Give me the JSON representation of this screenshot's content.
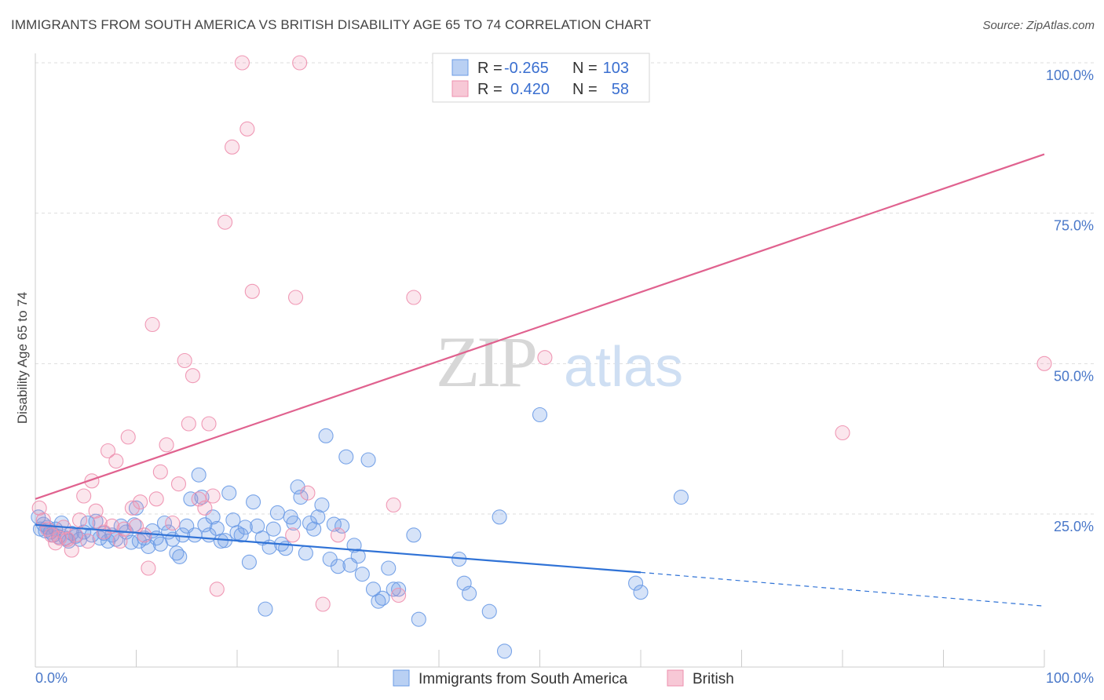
{
  "header": {
    "title": "IMMIGRANTS FROM SOUTH AMERICA VS BRITISH DISABILITY AGE 65 TO 74 CORRELATION CHART",
    "source": "Source: ZipAtlas.com"
  },
  "watermark": {
    "zip": "ZIP",
    "atlas": "atlas"
  },
  "legend": {
    "rows": [
      {
        "r_label": "R =",
        "r_value": "-0.265",
        "n_label": "N =",
        "n_value": "103",
        "color": "#6b9be6"
      },
      {
        "r_label": "R =",
        "r_value": "0.420",
        "n_label": "N =",
        "n_value": "58",
        "color": "#ee8fae"
      }
    ]
  },
  "bottom_legend": {
    "items": [
      {
        "label": "Immigrants from South America",
        "color": "#6b9be6"
      },
      {
        "label": "British",
        "color": "#ee8fae"
      }
    ]
  },
  "chart_data": {
    "type": "scatter",
    "ylabel": "Disability Age 65 to 74",
    "xlabel": "",
    "xlim": [
      0,
      100
    ],
    "ylim": [
      0,
      100
    ],
    "x_tick_labels": [
      "0.0%",
      "100.0%"
    ],
    "y_ticks": [
      25,
      50,
      75,
      100
    ],
    "y_tick_labels": [
      "25.0%",
      "50.0%",
      "75.0%",
      "100.0%"
    ],
    "grid": true,
    "legend_position": "top-center",
    "series": [
      {
        "name": "Immigrants from South America",
        "color": "#6b9be6",
        "trend": {
          "x0": 0,
          "y0": 23.2,
          "x1": 60,
          "y1": 15.3,
          "dash_to_x": 100,
          "dash_to_y": 9.7
        },
        "points": [
          [
            0.3,
            24.5
          ],
          [
            0.5,
            22.5
          ],
          [
            0.8,
            23.3
          ],
          [
            1.0,
            22.2
          ],
          [
            1.2,
            22.8
          ],
          [
            1.5,
            22.0
          ],
          [
            1.8,
            21.5
          ],
          [
            2.0,
            22.5
          ],
          [
            2.3,
            21.2
          ],
          [
            2.6,
            23.5
          ],
          [
            3.0,
            21.0
          ],
          [
            3.3,
            20.5
          ],
          [
            3.6,
            21.8
          ],
          [
            4.0,
            21.3
          ],
          [
            4.4,
            20.8
          ],
          [
            4.8,
            22.0
          ],
          [
            5.2,
            23.5
          ],
          [
            5.6,
            21.5
          ],
          [
            6.0,
            23.8
          ],
          [
            6.4,
            21.0
          ],
          [
            6.8,
            21.8
          ],
          [
            7.2,
            20.5
          ],
          [
            7.6,
            21.5
          ],
          [
            8.0,
            20.8
          ],
          [
            8.5,
            23.0
          ],
          [
            9.0,
            22.0
          ],
          [
            9.5,
            20.3
          ],
          [
            9.8,
            23.2
          ],
          [
            10.0,
            26.0
          ],
          [
            10.3,
            20.5
          ],
          [
            10.8,
            21.0
          ],
          [
            11.2,
            19.6
          ],
          [
            11.6,
            22.2
          ],
          [
            12.0,
            21.0
          ],
          [
            12.4,
            20.0
          ],
          [
            12.8,
            23.5
          ],
          [
            13.2,
            22.0
          ],
          [
            13.6,
            20.8
          ],
          [
            14.0,
            18.5
          ],
          [
            14.3,
            17.9
          ],
          [
            14.6,
            21.5
          ],
          [
            15.0,
            23.0
          ],
          [
            15.4,
            27.5
          ],
          [
            15.8,
            21.5
          ],
          [
            16.2,
            31.5
          ],
          [
            16.5,
            27.8
          ],
          [
            16.8,
            23.2
          ],
          [
            17.2,
            21.5
          ],
          [
            17.6,
            24.5
          ],
          [
            18.0,
            22.6
          ],
          [
            18.4,
            20.5
          ],
          [
            18.8,
            20.6
          ],
          [
            19.2,
            28.5
          ],
          [
            19.6,
            24.0
          ],
          [
            20.0,
            21.9
          ],
          [
            20.4,
            21.5
          ],
          [
            20.8,
            22.8
          ],
          [
            21.2,
            17.0
          ],
          [
            21.6,
            27.0
          ],
          [
            22.0,
            23.0
          ],
          [
            22.5,
            21.0
          ],
          [
            22.8,
            9.2
          ],
          [
            23.2,
            19.5
          ],
          [
            23.6,
            22.5
          ],
          [
            24.0,
            25.2
          ],
          [
            24.4,
            20.0
          ],
          [
            24.8,
            19.3
          ],
          [
            25.3,
            24.5
          ],
          [
            25.6,
            23.5
          ],
          [
            26.0,
            29.5
          ],
          [
            26.3,
            27.8
          ],
          [
            26.8,
            18.5
          ],
          [
            27.2,
            23.5
          ],
          [
            27.6,
            22.5
          ],
          [
            28.0,
            24.5
          ],
          [
            28.4,
            26.5
          ],
          [
            28.8,
            38.0
          ],
          [
            29.2,
            17.5
          ],
          [
            29.6,
            23.3
          ],
          [
            30.0,
            16.3
          ],
          [
            30.4,
            23.0
          ],
          [
            30.8,
            34.5
          ],
          [
            31.2,
            16.5
          ],
          [
            31.6,
            19.8
          ],
          [
            32.0,
            18.0
          ],
          [
            32.4,
            15.0
          ],
          [
            33.0,
            34.0
          ],
          [
            33.5,
            12.5
          ],
          [
            34.0,
            10.5
          ],
          [
            34.4,
            11.0
          ],
          [
            35.0,
            16.0
          ],
          [
            35.5,
            12.5
          ],
          [
            36.0,
            12.5
          ],
          [
            37.5,
            21.5
          ],
          [
            38.0,
            7.5
          ],
          [
            42.0,
            17.5
          ],
          [
            42.5,
            13.5
          ],
          [
            43.0,
            11.8
          ],
          [
            45.0,
            8.8
          ],
          [
            46.0,
            24.5
          ],
          [
            46.5,
            2.2
          ],
          [
            50.0,
            41.5
          ],
          [
            59.5,
            13.5
          ],
          [
            60.0,
            12.0
          ],
          [
            64.0,
            27.8
          ]
        ]
      },
      {
        "name": "British",
        "color": "#ee8fae",
        "trend": {
          "x0": 0,
          "y0": 27.5,
          "x1": 100,
          "y1": 84.8
        },
        "points": [
          [
            0.4,
            26.0
          ],
          [
            0.8,
            24.0
          ],
          [
            1.2,
            22.5
          ],
          [
            1.6,
            21.5
          ],
          [
            2.0,
            20.2
          ],
          [
            2.4,
            21.0
          ],
          [
            2.8,
            22.8
          ],
          [
            3.2,
            20.8
          ],
          [
            3.6,
            19.0
          ],
          [
            4.0,
            21.5
          ],
          [
            4.4,
            24.0
          ],
          [
            4.8,
            28.0
          ],
          [
            5.2,
            20.5
          ],
          [
            5.6,
            30.5
          ],
          [
            6.0,
            25.5
          ],
          [
            6.4,
            23.5
          ],
          [
            6.8,
            22.0
          ],
          [
            7.2,
            35.5
          ],
          [
            7.6,
            23.0
          ],
          [
            8.0,
            33.8
          ],
          [
            8.4,
            20.5
          ],
          [
            8.8,
            22.5
          ],
          [
            9.2,
            37.8
          ],
          [
            9.6,
            26.0
          ],
          [
            10.0,
            23.0
          ],
          [
            10.4,
            27.0
          ],
          [
            10.8,
            21.5
          ],
          [
            11.2,
            16.0
          ],
          [
            11.6,
            56.5
          ],
          [
            12.0,
            27.5
          ],
          [
            12.4,
            32.0
          ],
          [
            13.0,
            36.5
          ],
          [
            13.6,
            23.5
          ],
          [
            14.2,
            30.0
          ],
          [
            14.8,
            50.5
          ],
          [
            15.2,
            40.0
          ],
          [
            15.6,
            48.0
          ],
          [
            16.2,
            27.5
          ],
          [
            16.8,
            26.0
          ],
          [
            17.2,
            40.0
          ],
          [
            17.6,
            28.0
          ],
          [
            18.0,
            12.5
          ],
          [
            18.8,
            73.5
          ],
          [
            19.5,
            86.0
          ],
          [
            20.5,
            100.0
          ],
          [
            21.0,
            89.0
          ],
          [
            21.5,
            62.0
          ],
          [
            25.5,
            21.5
          ],
          [
            25.8,
            61.0
          ],
          [
            26.2,
            100.0
          ],
          [
            27.0,
            28.5
          ],
          [
            28.5,
            10.0
          ],
          [
            30.0,
            21.5
          ],
          [
            35.5,
            26.5
          ],
          [
            36.0,
            11.5
          ],
          [
            37.5,
            61.0
          ],
          [
            50.5,
            51.0
          ],
          [
            80.0,
            38.5
          ],
          [
            100.0,
            50.0
          ]
        ]
      }
    ]
  }
}
